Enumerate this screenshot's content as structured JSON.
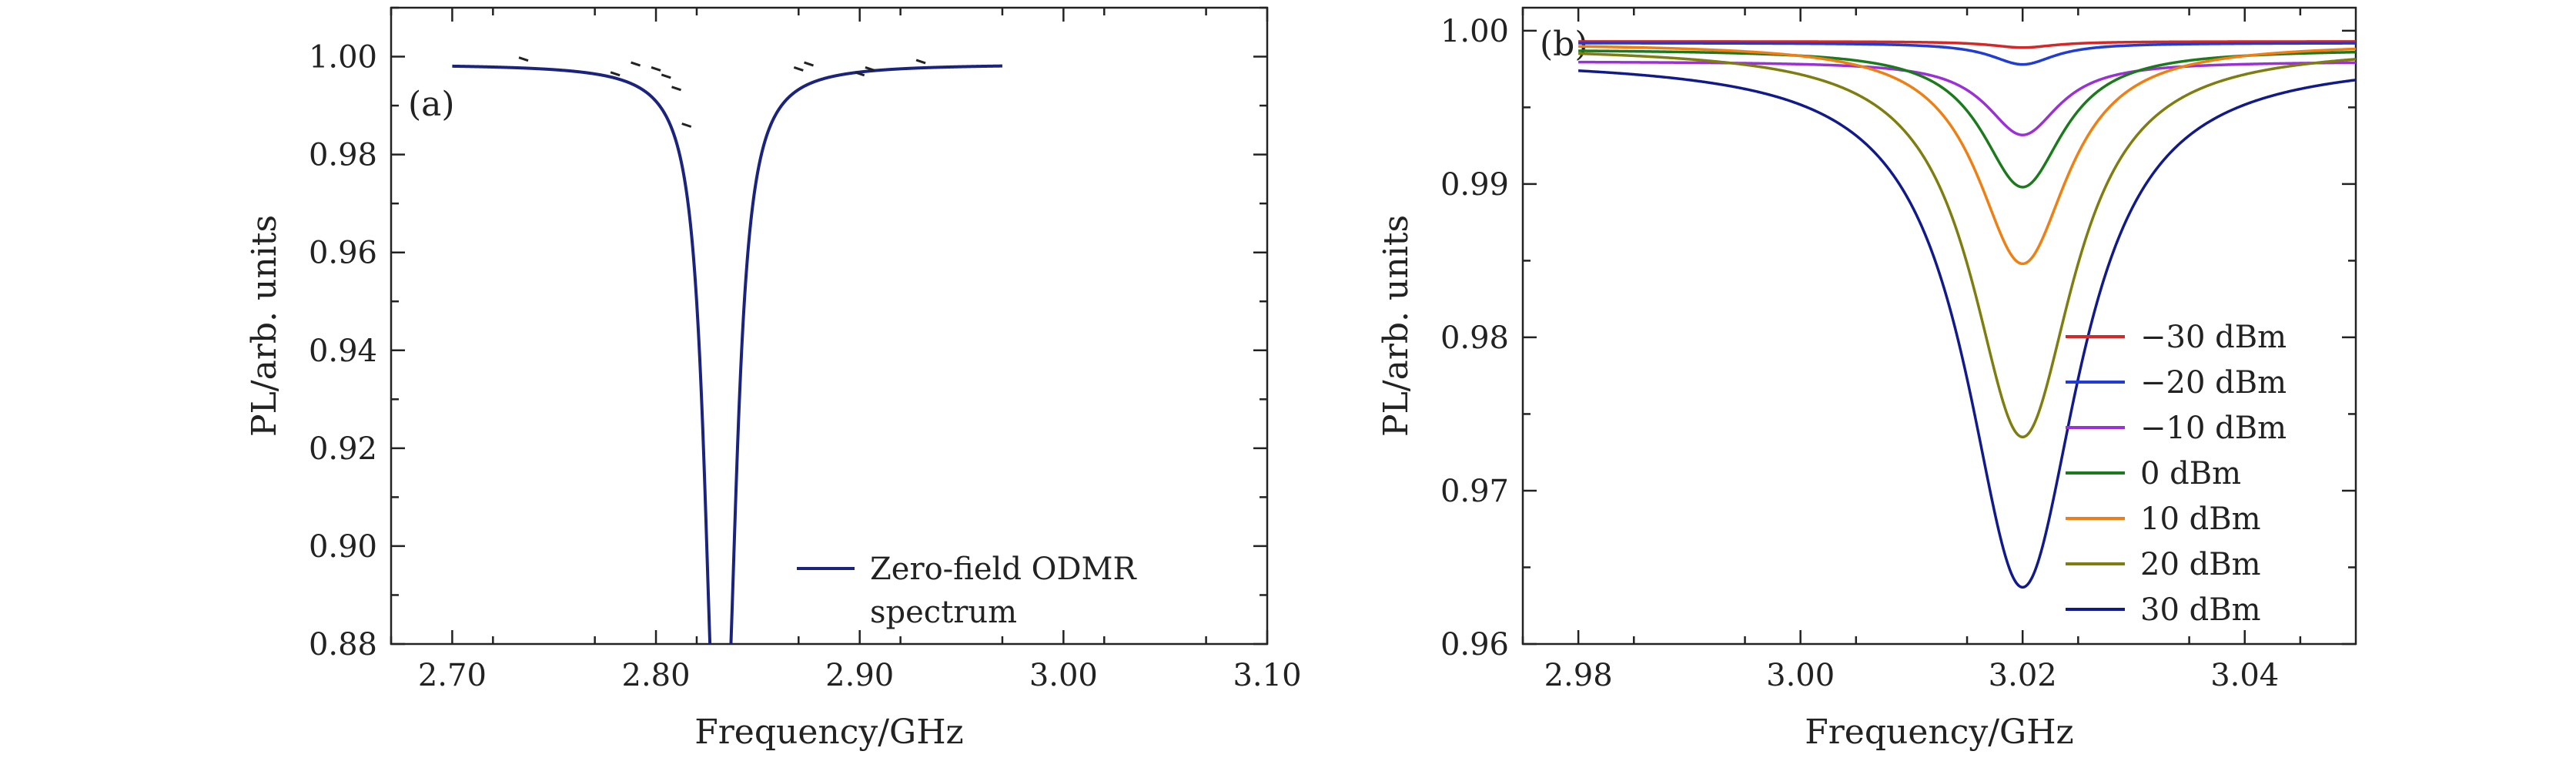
{
  "chart_data": [
    {
      "panel": "(a)",
      "type": "line",
      "xlabel": "Frequency/GHz",
      "ylabel": "PL/arb. units",
      "xlim": [
        2.67,
        3.1
      ],
      "ylim": [
        0.88,
        1.01
      ],
      "xticks": [
        "2.70",
        "2.80",
        "2.90",
        "3.00",
        "3.10"
      ],
      "yticks": [
        "0.88",
        "0.90",
        "0.92",
        "0.94",
        "0.96",
        "0.98",
        "1.00"
      ],
      "legend_position": "bottom-right",
      "series": [
        {
          "name": "Zero-field ODMR spectrum",
          "color": "#1a237e",
          "x_range": [
            2.7,
            2.97
          ],
          "baseline": 0.9985,
          "dips": [
            {
              "center": 2.8285,
              "depth": 0.094,
              "width": 0.0065
            },
            {
              "center": 2.835,
              "depth": 0.089,
              "width": 0.0065
            }
          ]
        }
      ],
      "data_points": {
        "color": "#222222",
        "x": [
          2.735,
          2.78,
          2.79,
          2.8,
          2.805,
          2.81,
          2.815,
          2.87,
          2.875,
          2.9,
          2.905,
          2.93
        ],
        "y": [
          0.9995,
          0.9965,
          0.9985,
          0.9975,
          0.996,
          0.9935,
          0.986,
          0.9975,
          0.9985,
          0.9965,
          0.9975,
          0.999
        ]
      }
    },
    {
      "panel": "(b)",
      "type": "line",
      "xlabel": "Frequency/GHz",
      "ylabel": "PL/arb. units",
      "xlim": [
        2.975,
        3.05
      ],
      "ylim": [
        0.96,
        1.0015
      ],
      "xticks": [
        "2.98",
        "3.00",
        "3.02",
        "3.04"
      ],
      "yticks": [
        "0.96",
        "0.97",
        "0.98",
        "0.99",
        "1.00"
      ],
      "legend_position": "right",
      "x_range": [
        2.98,
        3.05
      ],
      "dip_center": 3.02,
      "series": [
        {
          "name": "−30 dBm",
          "color": "#d62728",
          "baseline": 0.9993,
          "min": 0.9989,
          "width": 0.0035
        },
        {
          "name": "−20 dBm",
          "color": "#1f3bd8",
          "baseline": 0.9992,
          "min": 0.9978,
          "width": 0.0035
        },
        {
          "name": "−10 dBm",
          "color": "#9b30d9",
          "baseline": 0.998,
          "min": 0.9932,
          "width": 0.004
        },
        {
          "name": "0 dBm",
          "color": "#1b7a1b",
          "baseline": 0.9988,
          "min": 0.9898,
          "width": 0.0045
        },
        {
          "name": "10 dBm",
          "color": "#f07f13",
          "baseline": 0.9992,
          "min": 0.9848,
          "width": 0.005
        },
        {
          "name": "20 dBm",
          "color": "#7d7d10",
          "baseline": 0.999,
          "min": 0.9735,
          "width": 0.0056
        },
        {
          "name": "30 dBm",
          "color": "#101a8c",
          "baseline": 0.9982,
          "min": 0.9637,
          "width": 0.0062
        }
      ]
    }
  ]
}
